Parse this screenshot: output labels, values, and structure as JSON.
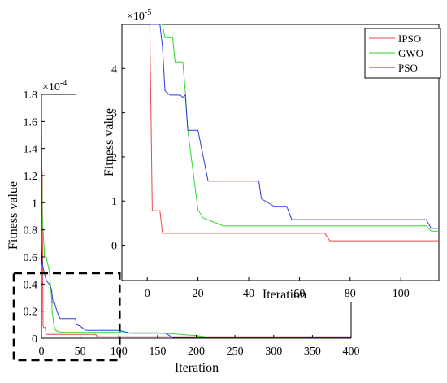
{
  "chart_data": [
    {
      "type": "line",
      "role": "main",
      "xlabel": "Iteration",
      "ylabel": "Fitness value",
      "exponent_label": "×10",
      "exponent_power": "-4",
      "xlim": [
        0,
        400
      ],
      "ylim": [
        0,
        1.8
      ],
      "xticks": [
        0,
        50,
        100,
        150,
        200,
        250,
        300,
        350,
        400
      ],
      "xtick_labels": [
        "0",
        "50",
        "100",
        "150",
        "200",
        "250",
        "300",
        "350",
        "400"
      ],
      "yticks": [
        0,
        0.2,
        0.4,
        0.6,
        0.8,
        1,
        1.2,
        1.4,
        1.6,
        1.8
      ],
      "ytick_labels": [
        "0",
        "0.2",
        "0.4",
        "0.6",
        "0.8",
        "1",
        "1.2",
        "1.4",
        "1.6",
        "1.8"
      ],
      "grid": false,
      "highlight_box": {
        "x": [
          0,
          100
        ],
        "y": [
          0,
          0.45
        ],
        "style": "dashed"
      },
      "series": [
        {
          "name": "IPSO",
          "color": "#e8474b",
          "x": [
            0,
            1,
            2,
            3,
            5,
            6,
            70,
            72,
            400
          ],
          "y": [
            1.3,
            1.2,
            0.09,
            0.08,
            0.08,
            0.028,
            0.028,
            0.01,
            0.01
          ]
        },
        {
          "name": "GWO",
          "color": "#2ed62e",
          "x": [
            0,
            1,
            3,
            4,
            6,
            10,
            12,
            13,
            14,
            15,
            16,
            17,
            18,
            20,
            22,
            25,
            30,
            60,
            100,
            110,
            150,
            200,
            220,
            400
          ],
          "y": [
            1.6,
            0.9,
            0.7,
            0.6,
            0.6,
            0.5,
            0.38,
            0.3,
            0.18,
            0.15,
            0.1,
            0.08,
            0.06,
            0.055,
            0.048,
            0.045,
            0.044,
            0.044,
            0.044,
            0.04,
            0.04,
            0.02,
            0.005,
            0.005
          ]
        },
        {
          "name": "PSO",
          "color": "#2e3bd6",
          "x": [
            0,
            1,
            3,
            5,
            7,
            10,
            13,
            15,
            17,
            20,
            24,
            30,
            44,
            45,
            50,
            57,
            60,
            100,
            115,
            160,
            170,
            400
          ],
          "y": [
            0.7,
            0.55,
            0.5,
            0.45,
            0.42,
            0.4,
            0.36,
            0.26,
            0.26,
            0.2,
            0.145,
            0.145,
            0.145,
            0.1,
            0.09,
            0.06,
            0.058,
            0.058,
            0.038,
            0.038,
            0.005,
            0.005
          ]
        }
      ]
    },
    {
      "type": "line",
      "role": "zoom-inset",
      "xlabel": "Iteration",
      "ylabel": "Fitness value",
      "exponent_label": "×10",
      "exponent_power": "-5",
      "xlim": [
        -10,
        115
      ],
      "ylim": [
        -0.8,
        5
      ],
      "xticks": [
        0,
        20,
        40,
        60,
        80,
        100
      ],
      "xtick_labels": [
        "0",
        "20",
        "40",
        "60",
        "80",
        "100"
      ],
      "yticks": [
        0,
        1,
        2,
        3,
        4
      ],
      "ytick_labels": [
        "0",
        "1",
        "2",
        "3",
        "4"
      ],
      "grid": false,
      "legend": {
        "position": "top-right",
        "entries": [
          "IPSO",
          "GWO",
          "PSO"
        ]
      },
      "series": [
        {
          "name": "IPSO",
          "color": "#e8474b",
          "x": [
            1,
            2,
            5,
            6,
            70,
            72,
            115
          ],
          "y": [
            5,
            0.78,
            0.78,
            0.27,
            0.27,
            0.1,
            0.1
          ]
        },
        {
          "name": "GWO",
          "color": "#2ed62e",
          "x": [
            1,
            6,
            7,
            10,
            11,
            14,
            15,
            16,
            20,
            22,
            30,
            110,
            112,
            115
          ],
          "y": [
            5,
            5,
            4.7,
            4.7,
            4.15,
            4.15,
            3.5,
            2.6,
            0.8,
            0.62,
            0.44,
            0.44,
            0.32,
            0.32
          ]
        },
        {
          "name": "PSO",
          "color": "#2e3bd6",
          "x": [
            1,
            5,
            6,
            7,
            9,
            10,
            13,
            14,
            15,
            16,
            17,
            20,
            24,
            44,
            45,
            50,
            55,
            57,
            110,
            112,
            115
          ],
          "y": [
            5,
            5,
            4.5,
            3.5,
            3.4,
            3.4,
            3.4,
            3.35,
            3.4,
            2.6,
            2.6,
            2.6,
            1.45,
            1.45,
            1.05,
            0.88,
            0.88,
            0.58,
            0.58,
            0.38,
            0.38
          ]
        }
      ]
    }
  ]
}
